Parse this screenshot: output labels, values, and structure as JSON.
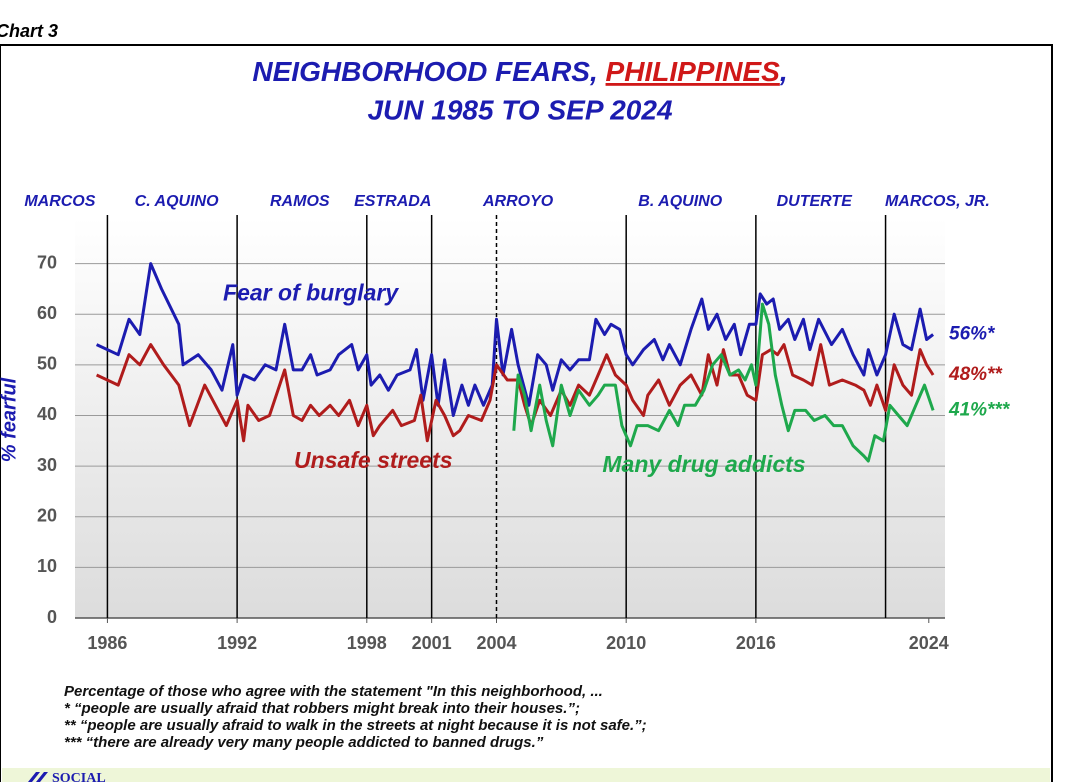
{
  "chart_label": "Chart 3",
  "chart_data": {
    "type": "line",
    "title": {
      "lead": "NEIGHBORHOOD FEARS,",
      "highlight": "PHILIPPINES",
      "tail": ","
    },
    "subtitle": "JUN 1985 TO SEP 2024",
    "y_label": "% fearful",
    "xlim": [
      1984.5,
      2024.75
    ],
    "ylim": [
      0,
      79
    ],
    "yticks": [
      0,
      10,
      20,
      30,
      40,
      50,
      60,
      70
    ],
    "xticks": [
      1986,
      1992,
      1998,
      2001,
      2004,
      2010,
      2016,
      2024
    ],
    "grid": true,
    "period_lines": [
      {
        "x": 1986,
        "dashed": false
      },
      {
        "x": 1992,
        "dashed": false
      },
      {
        "x": 1998,
        "dashed": false
      },
      {
        "x": 2001,
        "dashed": false
      },
      {
        "x": 2004,
        "dashed": true
      },
      {
        "x": 2010,
        "dashed": false
      },
      {
        "x": 2016,
        "dashed": false
      },
      {
        "x": 2022,
        "dashed": false
      }
    ],
    "periods": [
      {
        "name": "MARCOS",
        "x": 1983.8
      },
      {
        "name": "C. AQUINO",
        "x": 1989.2
      },
      {
        "name": "RAMOS",
        "x": 1994.9
      },
      {
        "name": "ESTRADA",
        "x": 1999.2
      },
      {
        "name": "ARROYO",
        "x": 2005.0
      },
      {
        "name": "B. AQUINO",
        "x": 2012.5
      },
      {
        "name": "DUTERTE",
        "x": 2018.7
      },
      {
        "name": "MARCOS, JR.",
        "x": 2024.4
      }
    ],
    "series": [
      {
        "name": "Fear of burglary",
        "color": "#1c1cb0",
        "label_x": 1995.4,
        "label_y": 63.9,
        "end_label": "56%*",
        "x": [
          1985.5,
          1986.5,
          1987,
          1987.5,
          1988,
          1988.5,
          1989.3,
          1989.5,
          1990.2,
          1990.8,
          1991.3,
          1991.8,
          1992,
          1992.3,
          1992.8,
          1993.3,
          1993.8,
          1994.2,
          1994.6,
          1995,
          1995.4,
          1995.7,
          1996.3,
          1996.7,
          1997.3,
          1997.6,
          1998,
          1998.2,
          1998.6,
          1999,
          1999.4,
          2000,
          2000.3,
          2000.6,
          2001,
          2001.3,
          2001.6,
          2002,
          2002.4,
          2002.7,
          2003,
          2003.4,
          2003.8,
          2004,
          2004.3,
          2004.7,
          2005,
          2005.5,
          2005.9,
          2006.3,
          2006.6,
          2007,
          2007.4,
          2007.8,
          2008.3,
          2008.6,
          2009,
          2009.3,
          2009.7,
          2010,
          2010.3,
          2010.8,
          2011.3,
          2011.7,
          2012,
          2012.5,
          2013,
          2013.5,
          2013.8,
          2014.2,
          2014.6,
          2015,
          2015.3,
          2015.7,
          2016,
          2016.2,
          2016.5,
          2016.8,
          2017.1,
          2017.5,
          2017.8,
          2018.2,
          2018.5,
          2018.9,
          2019.5,
          2020,
          2020.5,
          2021,
          2021.2,
          2021.6,
          2022,
          2022.4,
          2022.8,
          2023.2,
          2023.6,
          2023.9,
          2024.2
        ],
        "values": [
          54,
          52,
          59,
          56,
          70,
          65,
          58,
          50,
          52,
          49,
          45,
          54,
          44,
          48,
          47,
          50,
          49,
          58,
          49,
          49,
          52,
          48,
          49,
          52,
          54,
          49,
          52,
          46,
          48,
          45,
          48,
          49,
          53,
          43,
          52,
          42,
          51,
          40,
          46,
          42,
          46,
          42,
          46,
          59,
          48,
          57,
          50,
          42,
          52,
          50,
          45,
          51,
          49,
          51,
          51,
          59,
          56,
          58,
          57,
          52,
          50,
          53,
          55,
          51,
          54,
          50,
          57,
          63,
          57,
          60,
          55,
          58,
          52,
          58,
          58,
          64,
          62,
          63,
          57,
          59,
          55,
          59,
          53,
          59,
          54,
          57,
          52,
          48,
          53,
          48,
          52,
          60,
          54,
          53,
          61,
          55,
          56
        ]
      },
      {
        "name": "Unsafe streets",
        "color": "#b01c1c",
        "label_x": 1998.3,
        "label_y": 30.8,
        "end_label": "48%**",
        "x": [
          1985.5,
          1986.5,
          1987,
          1987.5,
          1988,
          1988.6,
          1989.3,
          1989.8,
          1990.5,
          1991,
          1991.5,
          1992,
          1992.3,
          1992.5,
          1993,
          1993.5,
          1994.2,
          1994.6,
          1995,
          1995.4,
          1995.8,
          1996.3,
          1996.7,
          1997.2,
          1997.6,
          1998,
          1998.3,
          1998.6,
          1999.2,
          1999.6,
          2000.2,
          2000.5,
          2000.8,
          2001.2,
          2001.6,
          2002,
          2002.3,
          2002.7,
          2003.3,
          2003.7,
          2004,
          2004.5,
          2005,
          2005.3,
          2005.6,
          2006,
          2006.5,
          2007,
          2007.4,
          2007.8,
          2008.3,
          2008.7,
          2009.1,
          2009.5,
          2010,
          2010.3,
          2010.8,
          2011,
          2011.5,
          2012,
          2012.5,
          2013,
          2013.5,
          2013.8,
          2014.2,
          2014.5,
          2014.8,
          2015.2,
          2015.6,
          2016,
          2016.3,
          2016.7,
          2017,
          2017.3,
          2017.7,
          2018.2,
          2018.6,
          2019,
          2019.4,
          2020,
          2020.6,
          2021,
          2021.3,
          2021.6,
          2022,
          2022.4,
          2022.8,
          2023.2,
          2023.6,
          2023.9,
          2024.2
        ],
        "values": [
          48,
          46,
          52,
          50,
          54,
          50,
          46,
          38,
          46,
          42,
          38,
          43,
          35,
          42,
          39,
          40,
          49,
          40,
          39,
          42,
          40,
          42,
          40,
          43,
          38,
          42,
          36,
          38,
          41,
          38,
          39,
          44,
          35,
          43,
          40,
          36,
          37,
          40,
          39,
          43,
          50,
          47,
          47,
          42,
          38,
          43,
          40,
          45,
          42,
          46,
          44,
          48,
          52,
          48,
          46,
          43,
          40,
          44,
          47,
          42,
          46,
          48,
          44,
          52,
          46,
          53,
          48,
          48,
          44,
          43,
          52,
          53,
          52,
          54,
          48,
          47,
          46,
          54,
          46,
          47,
          46,
          45,
          42,
          46,
          41,
          50,
          46,
          44,
          53,
          50,
          48
        ]
      },
      {
        "name": "Many drug addicts",
        "color": "#1ea84c",
        "label_x": 2013.6,
        "label_y": 30,
        "end_label": "41%***",
        "x": [
          2004.8,
          2005,
          2005.3,
          2005.6,
          2006,
          2006.3,
          2006.6,
          2007,
          2007.4,
          2007.8,
          2008.3,
          2008.7,
          2009,
          2009.5,
          2009.8,
          2010.2,
          2010.5,
          2011,
          2011.5,
          2012,
          2012.4,
          2012.7,
          2013.2,
          2013.6,
          2014,
          2014.4,
          2014.8,
          2015.2,
          2015.5,
          2015.8,
          2016,
          2016.3,
          2016.6,
          2016.9,
          2017.2,
          2017.5,
          2017.8,
          2018.3,
          2018.7,
          2019.2,
          2019.6,
          2020,
          2020.5,
          2021,
          2021.2,
          2021.5,
          2021.9,
          2022.2,
          2022.6,
          2023,
          2023.4,
          2023.8,
          2024.2
        ],
        "values": [
          37,
          48,
          44,
          37,
          46,
          39,
          34,
          46,
          40,
          45,
          42,
          44,
          46,
          46,
          38,
          34,
          38,
          38,
          37,
          41,
          38,
          42,
          42,
          45,
          50,
          52,
          48,
          49,
          47,
          50,
          46,
          62,
          58,
          48,
          42,
          37,
          41,
          41,
          39,
          40,
          38,
          38,
          34,
          32,
          31,
          36,
          35,
          42,
          40,
          38,
          42,
          46,
          41
        ]
      }
    ]
  },
  "notes": [
    "Percentage of  those who agree with the statement \"In this neighborhood, ...",
    "* “people are usually afraid that robbers might break into their houses.”;",
    "** “people are usually afraid to walk in the streets at night because it is not safe.”;",
    "*** “there are already very many people addicted to banned drugs.”"
  ],
  "footer": "SOCIAL"
}
